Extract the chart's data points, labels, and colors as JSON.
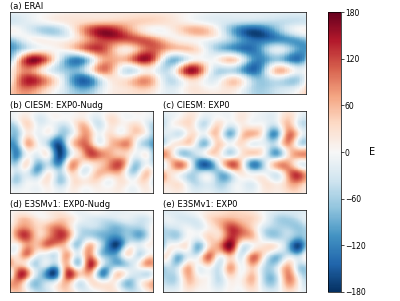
{
  "title_a": "(a) ERAI",
  "title_b": "(b) CIESM: EXP0-Nudg",
  "title_c": "(c) CIESM: EXP0",
  "title_d": "(d) E3SMv1: EXP0-Nudg",
  "title_e": "(e) E3SMv1: EXP0",
  "colorbar_label": "E",
  "vmin": -180,
  "vmax": 180,
  "colorbar_ticks": [
    180,
    120,
    60,
    0,
    -60,
    -120,
    -180
  ],
  "title_fontsize": 6.0,
  "cbar_fontsize": 5.5,
  "cbar_label_fontsize": 7.0,
  "background_color": "#ffffff"
}
